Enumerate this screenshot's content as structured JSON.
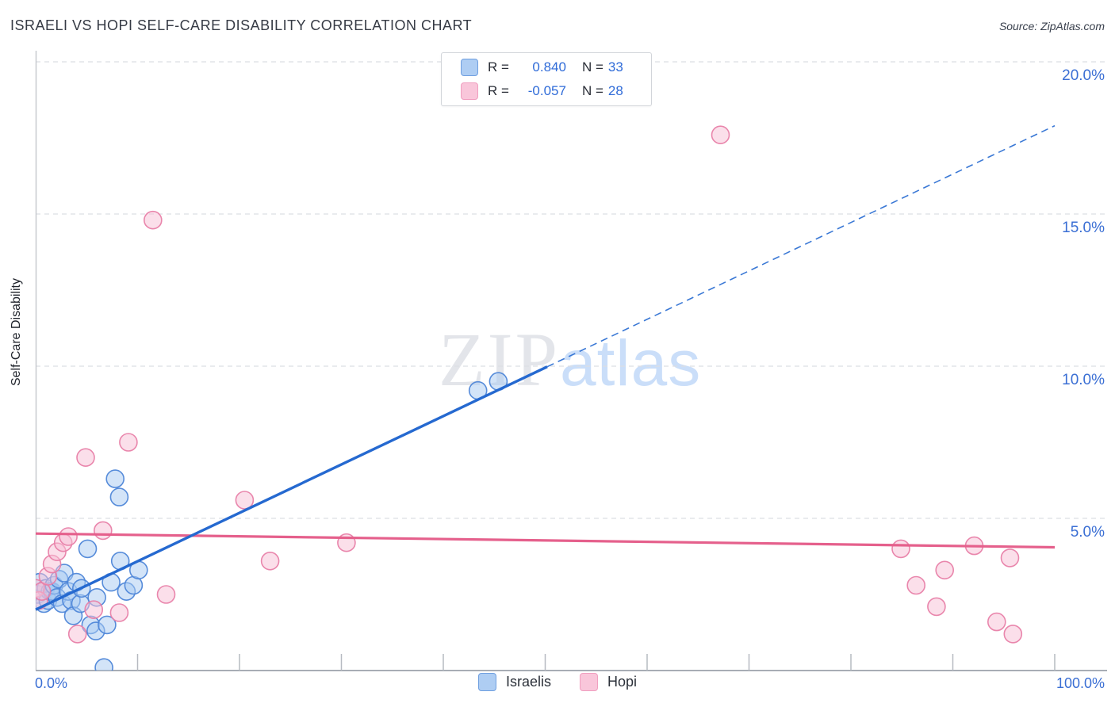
{
  "header": {
    "title": "ISRAELI VS HOPI SELF-CARE DISABILITY CORRELATION CHART",
    "source": "Source: ZipAtlas.com"
  },
  "watermark": {
    "part1": "ZIP",
    "part2": "atlas"
  },
  "legend_box": {
    "r_label": "R =",
    "n_label": "N ="
  },
  "axes": {
    "y_title": "Self-Care Disability",
    "x_min_label": "0.0%",
    "x_max_label": "100.0%"
  },
  "chart_data": {
    "type": "scatter",
    "title": "ISRAELI VS HOPI SELF-CARE DISABILITY CORRELATION CHART",
    "xlabel": "",
    "ylabel": "Self-Care Disability",
    "xlim": [
      0,
      100
    ],
    "ylim": [
      0,
      20.8
    ],
    "grid": "horizontal-dashed",
    "legend_position": "top-center",
    "x_ticks_pct": [
      0,
      10,
      20,
      30,
      40,
      50,
      60,
      70,
      80,
      90,
      100
    ],
    "y_ticks": [
      {
        "value": 5,
        "label": "5.0%"
      },
      {
        "value": 10,
        "label": "10.0%"
      },
      {
        "value": 15,
        "label": "15.0%"
      },
      {
        "value": 20,
        "label": "20.0%"
      }
    ],
    "series": [
      {
        "name": "Israelis",
        "R": "0.840",
        "N": 33,
        "fill": "#A8C9F1",
        "stroke": "#4E86D8",
        "points": [
          [
            0.2,
            2.5
          ],
          [
            0.4,
            2.9
          ],
          [
            0.8,
            2.2
          ],
          [
            1.0,
            2.7
          ],
          [
            1.2,
            2.3
          ],
          [
            1.4,
            2.6
          ],
          [
            1.6,
            2.6
          ],
          [
            1.8,
            2.8
          ],
          [
            2.1,
            2.4
          ],
          [
            2.3,
            3.0
          ],
          [
            2.6,
            2.2
          ],
          [
            2.8,
            3.2
          ],
          [
            3.2,
            2.6
          ],
          [
            3.5,
            2.3
          ],
          [
            3.7,
            1.8
          ],
          [
            4.0,
            2.9
          ],
          [
            4.4,
            2.2
          ],
          [
            4.5,
            2.7
          ],
          [
            5.1,
            4.0
          ],
          [
            5.4,
            1.5
          ],
          [
            5.9,
            1.3
          ],
          [
            6.0,
            2.4
          ],
          [
            6.7,
            0.1
          ],
          [
            7.0,
            1.5
          ],
          [
            7.4,
            2.9
          ],
          [
            7.8,
            6.3
          ],
          [
            8.2,
            5.7
          ],
          [
            8.3,
            3.6
          ],
          [
            8.9,
            2.6
          ],
          [
            9.6,
            2.8
          ],
          [
            10.1,
            3.3
          ],
          [
            43.4,
            9.2
          ],
          [
            45.4,
            9.5
          ]
        ],
        "trend": {
          "x0": 0,
          "y0": 2.0,
          "x1": 100,
          "y1": 17.9,
          "solid_to_x": 50.2,
          "color": "#2569D0",
          "style": "solid-then-dashed"
        }
      },
      {
        "name": "Hopi",
        "R": "-0.057",
        "N": 28,
        "fill": "#F7C0D6",
        "stroke": "#E87FA8",
        "points": [
          [
            0.0,
            2.7
          ],
          [
            0.3,
            2.3
          ],
          [
            0.6,
            2.6
          ],
          [
            1.2,
            3.1
          ],
          [
            1.6,
            3.5
          ],
          [
            2.1,
            3.9
          ],
          [
            2.7,
            4.2
          ],
          [
            3.2,
            4.4
          ],
          [
            4.1,
            1.2
          ],
          [
            4.9,
            7.0
          ],
          [
            5.7,
            2.0
          ],
          [
            6.6,
            4.6
          ],
          [
            8.2,
            1.9
          ],
          [
            9.1,
            7.5
          ],
          [
            11.5,
            14.8
          ],
          [
            12.8,
            2.5
          ],
          [
            20.5,
            5.6
          ],
          [
            23.0,
            3.6
          ],
          [
            30.5,
            4.2
          ],
          [
            67.2,
            17.6
          ],
          [
            84.9,
            4.0
          ],
          [
            86.4,
            2.8
          ],
          [
            88.4,
            2.1
          ],
          [
            89.2,
            3.3
          ],
          [
            92.1,
            4.1
          ],
          [
            94.3,
            1.6
          ],
          [
            95.6,
            3.7
          ],
          [
            95.9,
            1.2
          ]
        ],
        "trend": {
          "x0": 0,
          "y0": 4.5,
          "x1": 100,
          "y1": 4.05,
          "color": "#E5608C",
          "style": "solid"
        }
      }
    ]
  }
}
